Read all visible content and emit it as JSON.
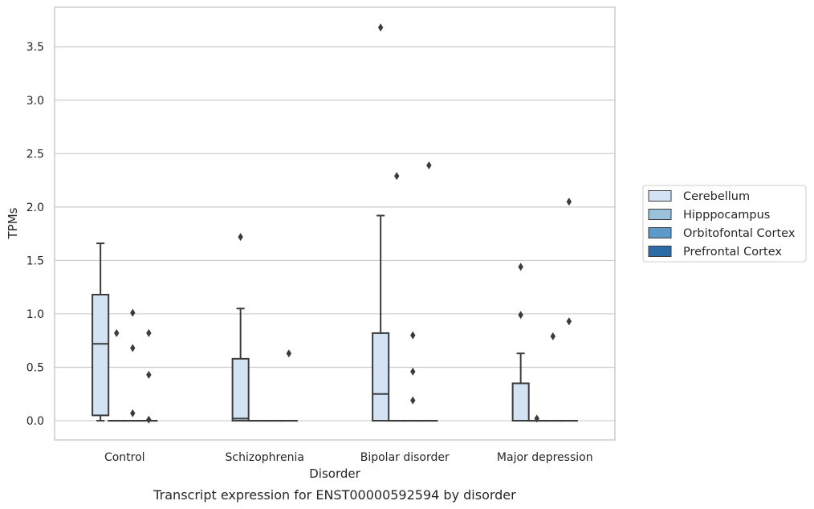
{
  "chart_data": {
    "type": "box",
    "caption": "Transcript expression for ENST00000592594 by disorder",
    "xlabel": "Disorder",
    "ylabel": "TPMs",
    "categories": [
      "Control",
      "Schizophrenia",
      "Bipolar disorder",
      "Major depression"
    ],
    "ylim": [
      -0.18,
      3.87
    ],
    "yticks": [
      "0.0",
      "0.5",
      "1.0",
      "1.5",
      "2.0",
      "2.5",
      "3.0",
      "3.5"
    ],
    "ytick_values": [
      0.0,
      0.5,
      1.0,
      1.5,
      2.0,
      2.5,
      3.0,
      3.5
    ],
    "grid": "horizontal",
    "legend_position": "right",
    "series": [
      {
        "name": "Cerebellum",
        "color": "#d3e3f3",
        "boxes": [
          {
            "category": "Control",
            "whisker_low": 0.0,
            "q1": 0.05,
            "median": 0.72,
            "q3": 1.18,
            "whisker_high": 1.66,
            "outliers": []
          },
          {
            "category": "Schizophrenia",
            "whisker_low": 0.0,
            "q1": 0.0,
            "median": 0.02,
            "q3": 0.58,
            "whisker_high": 1.05,
            "outliers": [
              1.72
            ]
          },
          {
            "category": "Bipolar disorder",
            "whisker_low": 0.0,
            "q1": 0.0,
            "median": 0.25,
            "q3": 0.82,
            "whisker_high": 1.92,
            "outliers": [
              3.68
            ]
          },
          {
            "category": "Major depression",
            "whisker_low": 0.0,
            "q1": 0.0,
            "median": 0.0,
            "q3": 0.35,
            "whisker_high": 0.63,
            "outliers": [
              1.44,
              0.99
            ]
          }
        ]
      },
      {
        "name": "Hipppocampus",
        "color": "#9ac2dd",
        "boxes": [
          {
            "category": "Control",
            "whisker_low": 0.0,
            "q1": 0.0,
            "median": 0.0,
            "q3": 0.0,
            "whisker_high": 0.0,
            "outliers": [
              0.82
            ]
          },
          {
            "category": "Schizophrenia",
            "whisker_low": 0.0,
            "q1": 0.0,
            "median": 0.0,
            "q3": 0.0,
            "whisker_high": 0.0,
            "outliers": []
          },
          {
            "category": "Bipolar disorder",
            "whisker_low": 0.0,
            "q1": 0.0,
            "median": 0.0,
            "q3": 0.0,
            "whisker_high": 0.0,
            "outliers": [
              2.29
            ]
          },
          {
            "category": "Major depression",
            "whisker_low": 0.0,
            "q1": 0.0,
            "median": 0.0,
            "q3": 0.0,
            "whisker_high": 0.0,
            "outliers": [
              0.02
            ]
          }
        ]
      },
      {
        "name": "Orbitofontal Cortex",
        "color": "#5b9ac9",
        "boxes": [
          {
            "category": "Control",
            "whisker_low": 0.0,
            "q1": 0.0,
            "median": 0.0,
            "q3": 0.0,
            "whisker_high": 0.0,
            "outliers": [
              1.01,
              0.68,
              0.07
            ]
          },
          {
            "category": "Schizophrenia",
            "whisker_low": 0.0,
            "q1": 0.0,
            "median": 0.0,
            "q3": 0.0,
            "whisker_high": 0.0,
            "outliers": []
          },
          {
            "category": "Bipolar disorder",
            "whisker_low": 0.0,
            "q1": 0.0,
            "median": 0.0,
            "q3": 0.0,
            "whisker_high": 0.0,
            "outliers": [
              0.8,
              0.46,
              0.19
            ]
          },
          {
            "category": "Major depression",
            "whisker_low": 0.0,
            "q1": 0.0,
            "median": 0.0,
            "q3": 0.0,
            "whisker_high": 0.0,
            "outliers": [
              0.79
            ]
          }
        ]
      },
      {
        "name": "Prefrontal Cortex",
        "color": "#2b6ca6",
        "boxes": [
          {
            "category": "Control",
            "whisker_low": 0.0,
            "q1": 0.0,
            "median": 0.0,
            "q3": 0.0,
            "whisker_high": 0.0,
            "outliers": [
              0.82,
              0.43,
              0.01
            ]
          },
          {
            "category": "Schizophrenia",
            "whisker_low": 0.0,
            "q1": 0.0,
            "median": 0.0,
            "q3": 0.0,
            "whisker_high": 0.0,
            "outliers": [
              0.63
            ]
          },
          {
            "category": "Bipolar disorder",
            "whisker_low": 0.0,
            "q1": 0.0,
            "median": 0.0,
            "q3": 0.0,
            "whisker_high": 0.0,
            "outliers": [
              2.39
            ]
          },
          {
            "category": "Major depression",
            "whisker_low": 0.0,
            "q1": 0.0,
            "median": 0.0,
            "q3": 0.0,
            "whisker_high": 0.0,
            "outliers": [
              2.05,
              0.93
            ]
          }
        ]
      }
    ]
  }
}
